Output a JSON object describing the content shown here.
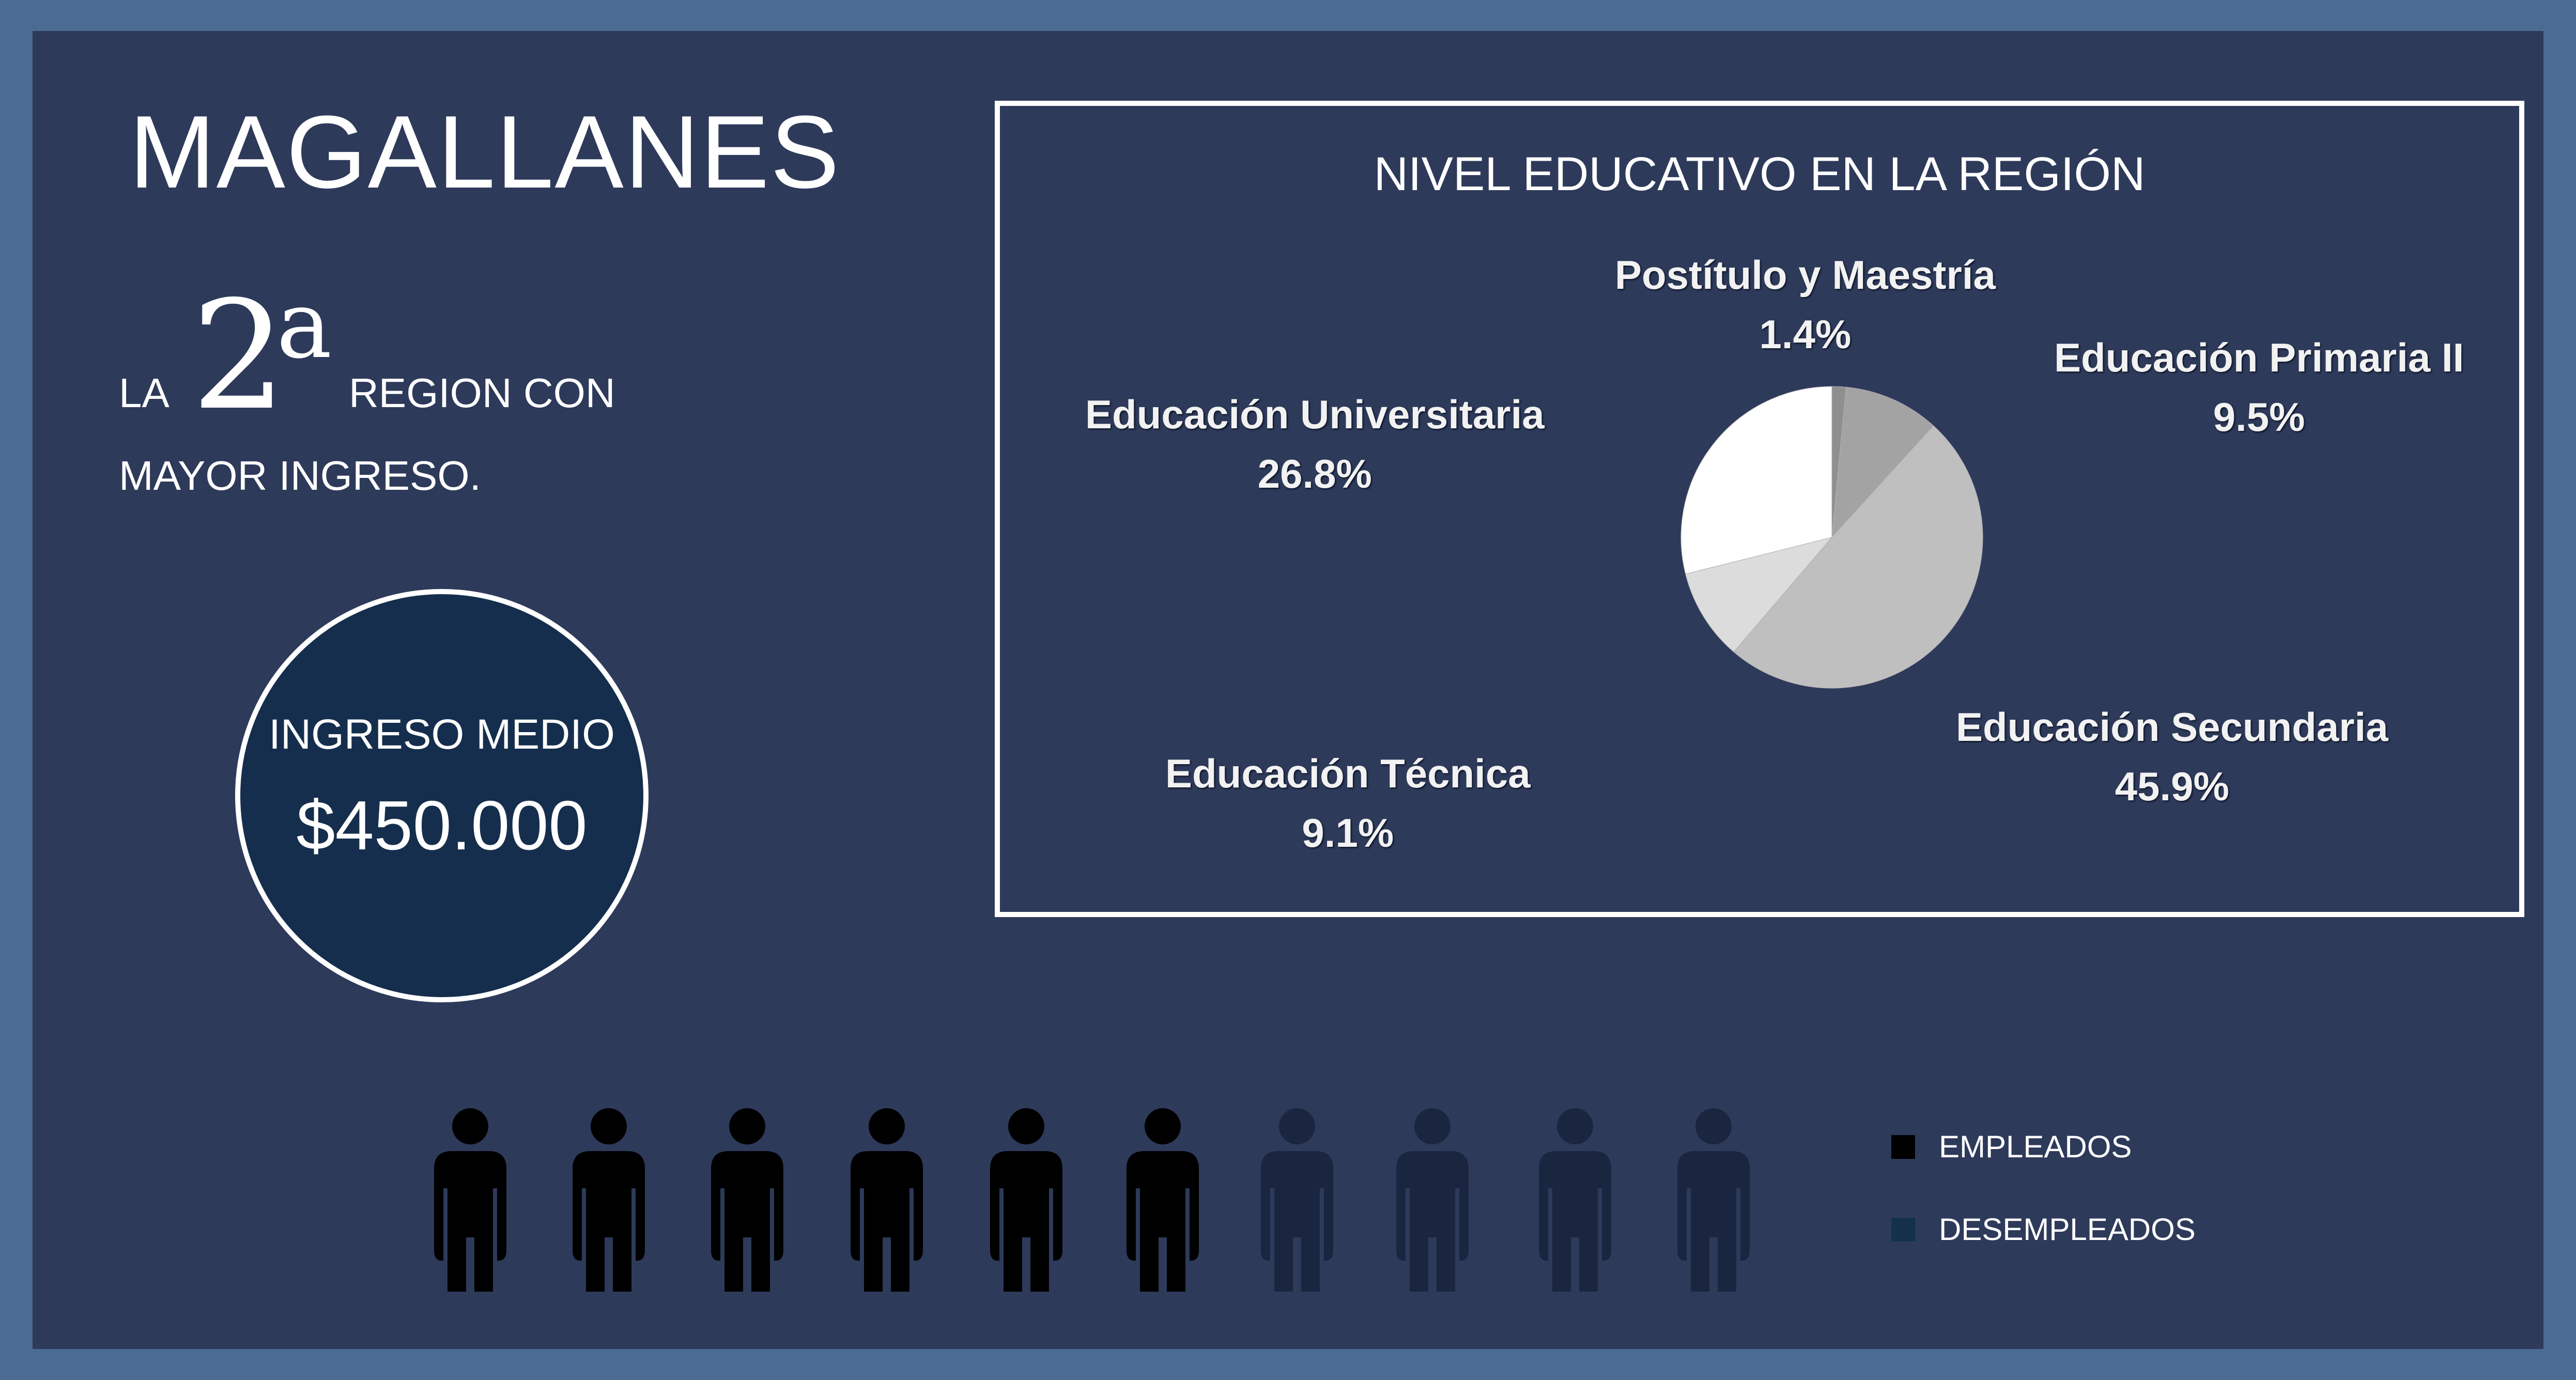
{
  "header": {
    "title": "MAGALLANES"
  },
  "ranking": {
    "prefix": "LA",
    "number": "2",
    "superscript": "a",
    "suffix": "REGION CON",
    "line2": "MAYOR INGRESO."
  },
  "income": {
    "label": "INGRESO MEDIO",
    "value": "$450.000"
  },
  "chart_data": {
    "type": "pie",
    "title": "NIVEL EDUCATIVO EN LA REGIÓN",
    "categories": [
      "Postítulo y Maestría",
      "Educación Primaria II",
      "Educación Secundaria",
      "Educación Técnica",
      "Educación Universitaria"
    ],
    "values": [
      1.4,
      9.5,
      45.9,
      9.1,
      26.8
    ],
    "labels": [
      "1.4%",
      "9.5%",
      "45.9%",
      "9.1%",
      "26.8%"
    ],
    "colors": [
      "#8f8f8f",
      "#a3a3a3",
      "#bfbfbf",
      "#dcdcdc",
      "#ffffff"
    ],
    "legend": "none"
  },
  "employment": {
    "employed_count": 6,
    "unemployed_count": 4,
    "employed_color": "#000000",
    "unemployed_color": "#1a2640",
    "legend": [
      {
        "label": "EMPLEADOS",
        "color": "#000000"
      },
      {
        "label": "DESEMPLEADOS",
        "color": "#14304d"
      }
    ]
  }
}
